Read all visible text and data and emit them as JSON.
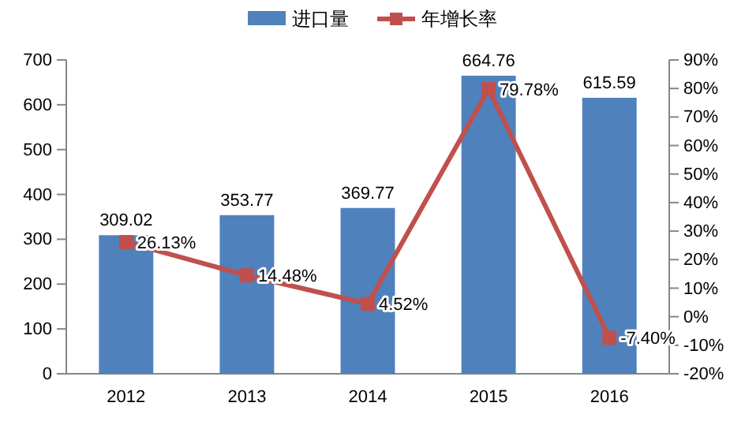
{
  "chart_data": {
    "type": "bar",
    "categories": [
      "2012",
      "2013",
      "2014",
      "2015",
      "2016"
    ],
    "series": [
      {
        "name": "进口量",
        "color": "#4f81bd",
        "values": [
          309.02,
          353.77,
          369.77,
          664.76,
          615.59
        ],
        "value_labels": [
          "309.02",
          "353.77",
          "369.77",
          "664.76",
          "615.59"
        ]
      },
      {
        "name": "年增长率",
        "type": "line",
        "axis": "y2",
        "color": "#c0504d",
        "marker": "square",
        "values": [
          26.13,
          14.48,
          4.52,
          79.78,
          -7.4
        ],
        "value_labels": [
          "26.13%",
          "14.48%",
          "4.52%",
          "79.78%",
          "-7.40%"
        ]
      }
    ],
    "ylim": [
      0,
      700
    ],
    "yticks": [
      0,
      100,
      200,
      300,
      400,
      500,
      600,
      700
    ],
    "y2lim": [
      -20,
      90
    ],
    "y2ticks": [
      {
        "value": -20,
        "label": "-20%"
      },
      {
        "value": -10,
        "label": "-10%"
      },
      {
        "value": 0,
        "label": "0%"
      },
      {
        "value": 10,
        "label": "10%"
      },
      {
        "value": 20,
        "label": "20%"
      },
      {
        "value": 30,
        "label": "30%"
      },
      {
        "value": 40,
        "label": "40%"
      },
      {
        "value": 50,
        "label": "50%"
      },
      {
        "value": 60,
        "label": "60%"
      },
      {
        "value": 70,
        "label": "70%"
      },
      {
        "value": 80,
        "label": "80%"
      },
      {
        "value": 90,
        "label": "90%"
      }
    ],
    "legend": "top",
    "grid": false
  }
}
